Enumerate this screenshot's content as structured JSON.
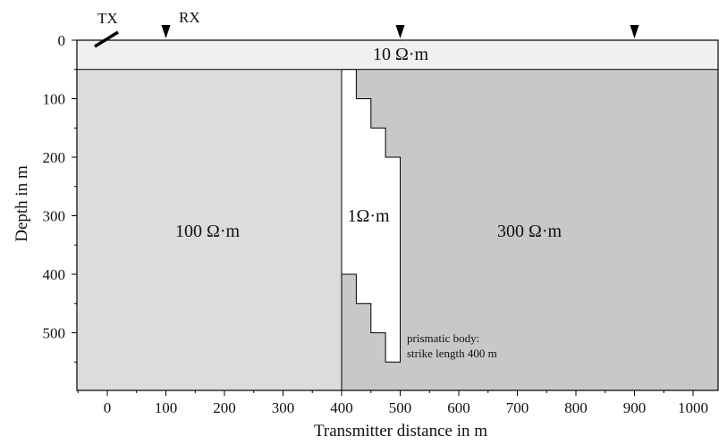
{
  "figure": {
    "x_axis": {
      "title": "Transmitter distance  in m",
      "ticks": [
        "0",
        "100",
        "200",
        "300",
        "400",
        "500",
        "600",
        "700",
        "800",
        "900",
        "1000"
      ]
    },
    "y_axis": {
      "title": "Depth  in m",
      "ticks": [
        "0",
        "100",
        "200",
        "300",
        "400",
        "500"
      ]
    },
    "regions": {
      "top_layer": "10 Ω·m",
      "left_half_space": "100 Ω·m",
      "conductive_body": "1Ω·m",
      "right_half_space": "300 Ω·m"
    },
    "annotations": {
      "transmitter": "TX",
      "receiver": "RX",
      "body_note_line1": "prismatic body:",
      "body_note_line2": "strike length 400 m"
    },
    "model_geometry_m": {
      "layer_bottom_depth": 50,
      "contact_x": 400,
      "receivers_x": [
        100,
        500,
        900
      ],
      "transmitter_x": 0,
      "body_outline": [
        [
          400,
          50
        ],
        [
          425,
          50
        ],
        [
          425,
          100
        ],
        [
          450,
          100
        ],
        [
          450,
          150
        ],
        [
          475,
          150
        ],
        [
          475,
          200
        ],
        [
          500,
          200
        ],
        [
          500,
          550
        ],
        [
          475,
          550
        ],
        [
          475,
          500
        ],
        [
          450,
          500
        ],
        [
          450,
          450
        ],
        [
          425,
          450
        ],
        [
          425,
          400
        ],
        [
          400,
          400
        ]
      ]
    },
    "colors": {
      "top_layer": "#f0f0f0",
      "left_half_space": "#dcdcdc",
      "right_half_space": "#c8c8c8",
      "conductive_body": "#ffffff",
      "lines": "#000000"
    }
  }
}
